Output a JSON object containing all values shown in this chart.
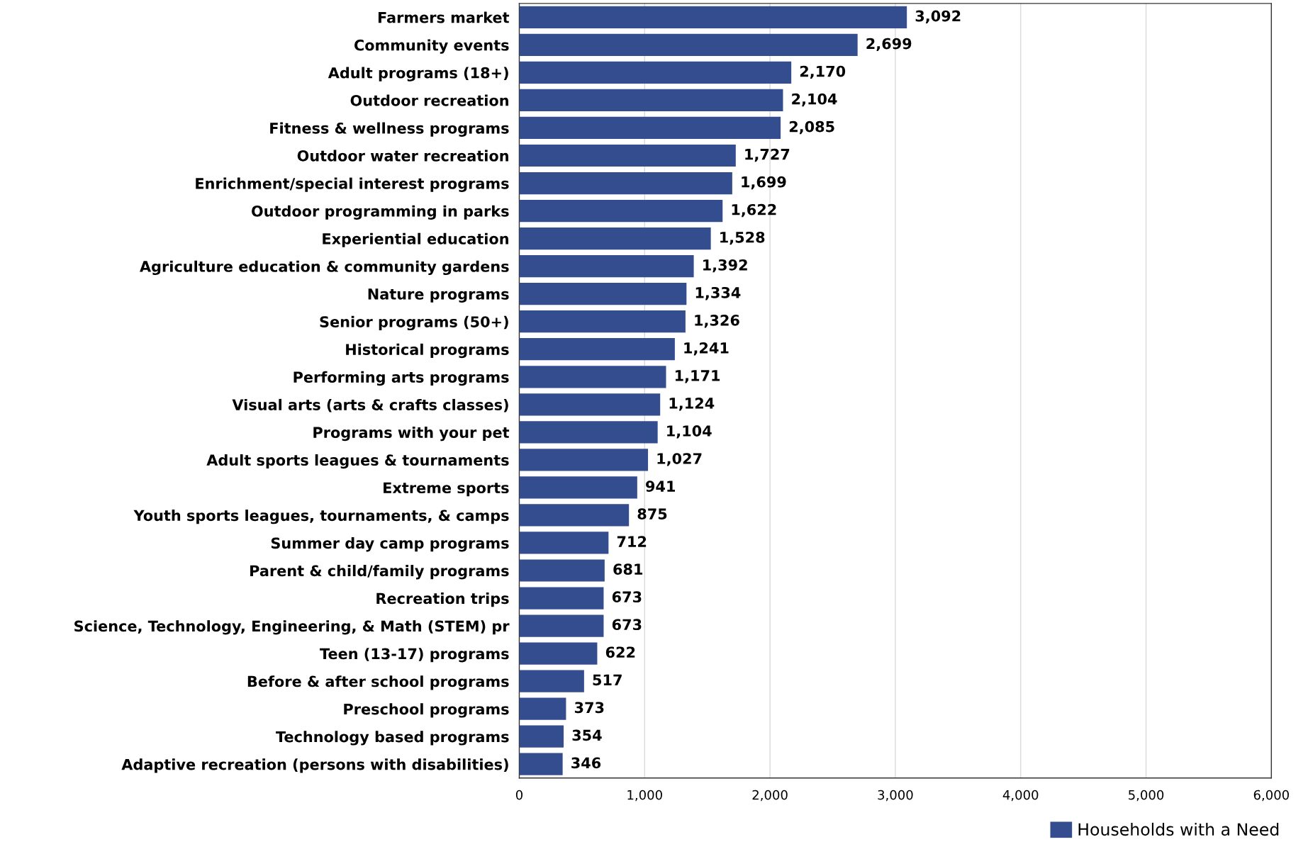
{
  "chart_data": {
    "type": "bar",
    "orientation": "horizontal",
    "categories": [
      "Farmers market",
      "Community events",
      "Adult programs (18+)",
      "Outdoor recreation",
      "Fitness & wellness programs",
      "Outdoor water recreation",
      "Enrichment/special interest programs",
      "Outdoor programming in parks",
      "Experiential education",
      "Agriculture education & community gardens",
      "Nature programs",
      "Senior programs (50+)",
      "Historical programs",
      "Performing arts programs",
      "Visual arts (arts & crafts classes)",
      "Programs with your pet",
      "Adult sports leagues & tournaments",
      "Extreme sports",
      "Youth sports leagues, tournaments, & camps",
      "Summer day camp programs",
      "Parent & child/family programs",
      "Recreation trips",
      "Science, Technology, Engineering, & Math (STEM) pr",
      "Teen (13-17) programs",
      "Before & after school programs",
      "Preschool programs",
      "Technology based programs",
      "Adaptive recreation (persons with disabilities)"
    ],
    "series": [
      {
        "name": "Households with a Need",
        "color": "#334d8e",
        "values": [
          3092,
          2699,
          2170,
          2104,
          2085,
          1727,
          1699,
          1622,
          1528,
          1392,
          1334,
          1326,
          1241,
          1171,
          1124,
          1104,
          1027,
          941,
          875,
          712,
          681,
          673,
          673,
          622,
          517,
          373,
          354,
          346
        ],
        "value_labels": [
          "3,092",
          "2,699",
          "2,170",
          "2,104",
          "2,085",
          "1,727",
          "1,699",
          "1,622",
          "1,528",
          "1,392",
          "1,334",
          "1,326",
          "1,241",
          "1,171",
          "1,124",
          "1,104",
          "1,027",
          "941",
          "875",
          "712",
          "681",
          "673",
          "673",
          "622",
          "517",
          "373",
          "354",
          "346"
        ]
      }
    ],
    "xlim": [
      0,
      6000
    ],
    "xticks": [
      {
        "value": 0,
        "label": "0"
      },
      {
        "value": 1000,
        "label": "1,000"
      },
      {
        "value": 2000,
        "label": "2,000"
      },
      {
        "value": 3000,
        "label": "3,000"
      },
      {
        "value": 4000,
        "label": "4,000"
      },
      {
        "value": 5000,
        "label": "5,000"
      },
      {
        "value": 6000,
        "label": "6,000"
      }
    ],
    "grid": "x",
    "legend": "bottom right"
  }
}
